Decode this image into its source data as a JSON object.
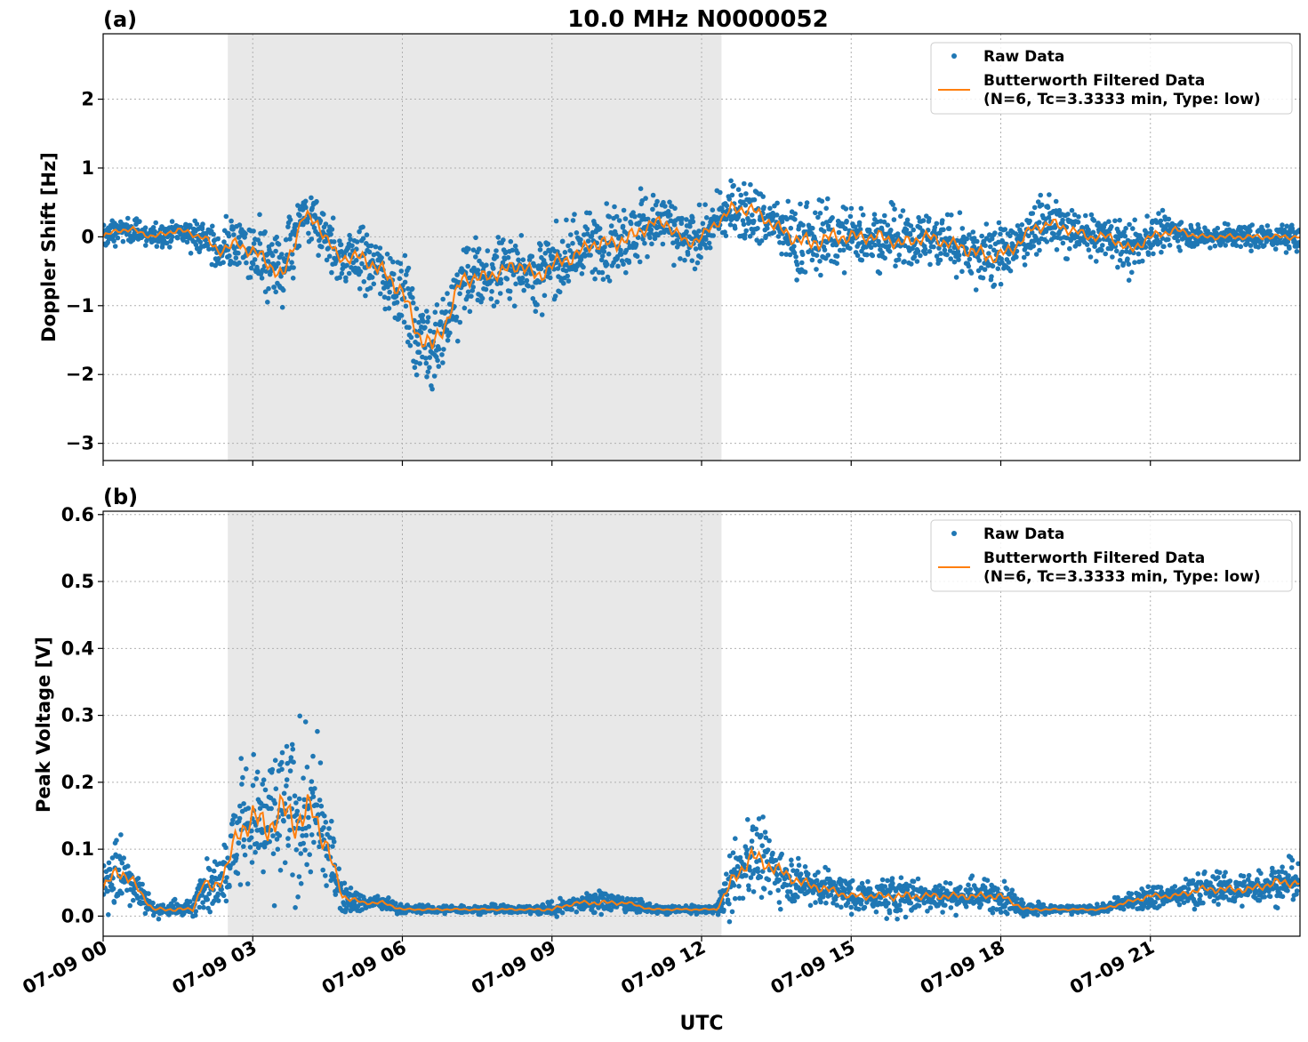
{
  "figure": {
    "title": "10.0 MHz N0000052",
    "xlabel": "UTC",
    "x_tick_labels": [
      "07-09 00",
      "07-09 03",
      "07-09 06",
      "07-09 09",
      "07-09 12",
      "07-09 15",
      "07-09 18",
      "07-09 21"
    ],
    "legend": {
      "raw": "Raw Data",
      "filtered_line1": "Butterworth Filtered Data",
      "filtered_line2": "(N=6, Tc=3.3333 min, Type: low)"
    },
    "colors": {
      "raw": "#1f77b4",
      "filtered": "#ff7f0e",
      "shade": "#e8e8e8",
      "grid": "#b0b0b0"
    }
  },
  "chart_data": [
    {
      "panel": "(a)",
      "type": "scatter",
      "ylabel": "Doppler Shift [Hz]",
      "xlim_hours": [
        0,
        24
      ],
      "ylim": [
        -3.25,
        2.95
      ],
      "y_ticks": [
        -3,
        -2,
        -1,
        0,
        1,
        2
      ],
      "y_tick_labels": [
        "−3",
        "−2",
        "−1",
        "0",
        "1",
        "2"
      ],
      "shaded_span_hours": [
        2.5,
        12.4
      ],
      "grid": true,
      "legend_position": "top-right",
      "series": [
        {
          "name": "Raw Data",
          "style": "points",
          "x_hours": [
            0,
            0.3,
            0.6,
            1,
            1.5,
            2,
            2.3,
            2.7,
            3.2,
            3.6,
            4,
            4.3,
            4.7,
            5.2,
            5.6,
            6,
            6.3,
            6.6,
            6.9,
            7.2,
            7.6,
            8,
            8.4,
            8.7,
            9,
            9.4,
            9.8,
            10.2,
            10.6,
            11,
            11.3,
            11.7,
            12,
            12.3,
            12.6,
            13,
            13.4,
            13.8,
            14.2,
            14.6,
            15,
            15.3,
            15.6,
            16,
            16.5,
            17,
            17.4,
            17.8,
            18.2,
            18.6,
            19,
            19.4,
            19.8,
            20.2,
            20.6,
            21,
            21.5,
            22,
            22.5,
            23,
            23.5,
            24
          ],
          "y_center": [
            0.0,
            0.1,
            0.1,
            0.0,
            0.1,
            0.0,
            -0.2,
            -0.1,
            -0.3,
            -0.6,
            0.3,
            0.2,
            -0.3,
            -0.3,
            -0.5,
            -0.8,
            -1.4,
            -1.6,
            -1.2,
            -0.6,
            -0.6,
            -0.5,
            -0.4,
            -0.6,
            -0.4,
            -0.3,
            -0.1,
            -0.1,
            0.0,
            0.2,
            0.2,
            -0.1,
            0.0,
            0.2,
            0.4,
            0.4,
            0.2,
            0.0,
            -0.1,
            0.0,
            0.0,
            0.0,
            0.0,
            -0.1,
            0.0,
            -0.1,
            -0.2,
            -0.3,
            -0.2,
            0.1,
            0.2,
            0.1,
            0.0,
            0.0,
            -0.2,
            0.0,
            0.1,
            0.0,
            0.0,
            0.0,
            0.0,
            0.0
          ],
          "y_spread": [
            0.15,
            0.15,
            0.15,
            0.15,
            0.15,
            0.2,
            0.3,
            0.35,
            0.4,
            0.45,
            0.4,
            0.35,
            0.35,
            0.4,
            0.45,
            0.5,
            0.55,
            0.55,
            0.5,
            0.45,
            0.4,
            0.4,
            0.4,
            0.45,
            0.45,
            0.4,
            0.4,
            0.45,
            0.45,
            0.35,
            0.35,
            0.35,
            0.3,
            0.3,
            0.35,
            0.35,
            0.35,
            0.4,
            0.45,
            0.45,
            0.4,
            0.35,
            0.35,
            0.35,
            0.35,
            0.35,
            0.4,
            0.4,
            0.35,
            0.3,
            0.3,
            0.3,
            0.25,
            0.25,
            0.3,
            0.25,
            0.2,
            0.15,
            0.15,
            0.15,
            0.15,
            0.15
          ]
        },
        {
          "name": "Butterworth Filtered Data (N=6, Tc=3.3333 min, Type: low)",
          "style": "line",
          "x_hours": [
            0,
            0.3,
            0.6,
            1,
            1.5,
            2,
            2.3,
            2.7,
            3.2,
            3.6,
            4,
            4.3,
            4.7,
            5.2,
            5.6,
            6,
            6.3,
            6.6,
            6.9,
            7.2,
            7.6,
            8,
            8.4,
            8.7,
            9,
            9.4,
            9.8,
            10.2,
            10.6,
            11,
            11.3,
            11.7,
            12,
            12.3,
            12.6,
            13,
            13.4,
            13.8,
            14.2,
            14.6,
            15,
            15.3,
            15.6,
            16,
            16.5,
            17,
            17.4,
            17.8,
            18.2,
            18.6,
            19,
            19.4,
            19.8,
            20.2,
            20.6,
            21,
            21.5,
            22,
            22.5,
            23,
            23.5,
            24
          ],
          "y": [
            0.0,
            0.1,
            0.1,
            0.0,
            0.1,
            0.0,
            -0.2,
            -0.1,
            -0.3,
            -0.6,
            0.3,
            0.2,
            -0.3,
            -0.3,
            -0.5,
            -0.8,
            -1.4,
            -1.6,
            -1.2,
            -0.6,
            -0.6,
            -0.5,
            -0.4,
            -0.6,
            -0.4,
            -0.3,
            -0.1,
            -0.1,
            0.0,
            0.2,
            0.2,
            -0.1,
            0.0,
            0.2,
            0.4,
            0.4,
            0.2,
            0.0,
            -0.1,
            0.0,
            0.0,
            0.0,
            0.0,
            -0.1,
            0.0,
            -0.1,
            -0.2,
            -0.3,
            -0.2,
            0.1,
            0.2,
            0.1,
            0.0,
            0.0,
            -0.2,
            0.0,
            0.1,
            0.0,
            0.0,
            0.0,
            0.0,
            0.0
          ]
        }
      ]
    },
    {
      "panel": "(b)",
      "type": "scatter",
      "ylabel": "Peak Voltage [V]",
      "xlim_hours": [
        0,
        24
      ],
      "ylim": [
        -0.03,
        0.605
      ],
      "y_ticks": [
        0,
        0.1,
        0.2,
        0.3,
        0.4,
        0.5,
        0.6
      ],
      "y_tick_labels": [
        "0.0",
        "0.1",
        "0.2",
        "0.3",
        "0.4",
        "0.5",
        "0.6"
      ],
      "shaded_span_hours": [
        2.5,
        12.4
      ],
      "grid": true,
      "legend_position": "top-right",
      "series": [
        {
          "name": "Raw Data",
          "style": "points",
          "x_hours": [
            0,
            0.3,
            0.6,
            1,
            1.5,
            1.8,
            2,
            2.2,
            2.4,
            2.7,
            3,
            3.3,
            3.6,
            3.9,
            4.2,
            4.5,
            4.8,
            5.2,
            5.6,
            6,
            6.5,
            7,
            7.5,
            8,
            8.5,
            9,
            9.5,
            10,
            10.5,
            11,
            11.5,
            12,
            12.3,
            12.6,
            13,
            13.5,
            14,
            14.5,
            15,
            15.5,
            16,
            16.5,
            17,
            17.5,
            18,
            18.5,
            19,
            19.5,
            20,
            20.5,
            21,
            21.5,
            22,
            22.5,
            23,
            23.5,
            24
          ],
          "y_center": [
            0.04,
            0.07,
            0.05,
            0.01,
            0.01,
            0.01,
            0.05,
            0.04,
            0.06,
            0.12,
            0.15,
            0.13,
            0.16,
            0.14,
            0.16,
            0.1,
            0.03,
            0.02,
            0.02,
            0.01,
            0.01,
            0.01,
            0.01,
            0.01,
            0.01,
            0.01,
            0.02,
            0.02,
            0.02,
            0.01,
            0.01,
            0.01,
            0.01,
            0.05,
            0.09,
            0.07,
            0.05,
            0.04,
            0.03,
            0.03,
            0.03,
            0.03,
            0.03,
            0.03,
            0.03,
            0.01,
            0.01,
            0.01,
            0.01,
            0.02,
            0.03,
            0.03,
            0.04,
            0.04,
            0.04,
            0.05,
            0.05
          ],
          "y_spread": [
            0.03,
            0.05,
            0.03,
            0.01,
            0.01,
            0.01,
            0.03,
            0.03,
            0.04,
            0.07,
            0.08,
            0.08,
            0.1,
            0.1,
            0.1,
            0.06,
            0.02,
            0.01,
            0.01,
            0.005,
            0.005,
            0.005,
            0.005,
            0.005,
            0.005,
            0.01,
            0.01,
            0.015,
            0.01,
            0.005,
            0.005,
            0.005,
            0.005,
            0.04,
            0.05,
            0.04,
            0.03,
            0.025,
            0.02,
            0.02,
            0.025,
            0.02,
            0.02,
            0.02,
            0.02,
            0.01,
            0.005,
            0.005,
            0.005,
            0.01,
            0.015,
            0.015,
            0.02,
            0.02,
            0.02,
            0.025,
            0.025
          ]
        },
        {
          "name": "Butterworth Filtered Data (N=6, Tc=3.3333 min, Type: low)",
          "style": "line",
          "x_hours": [
            0,
            0.3,
            0.6,
            1,
            1.5,
            1.8,
            2,
            2.2,
            2.4,
            2.7,
            3,
            3.3,
            3.6,
            3.9,
            4.2,
            4.5,
            4.8,
            5.2,
            5.6,
            6,
            6.5,
            7,
            7.5,
            8,
            8.5,
            9,
            9.5,
            10,
            10.5,
            11,
            11.5,
            12,
            12.3,
            12.6,
            13,
            13.5,
            14,
            14.5,
            15,
            15.5,
            16,
            16.5,
            17,
            17.5,
            18,
            18.5,
            19,
            19.5,
            20,
            20.5,
            21,
            21.5,
            22,
            22.5,
            23,
            23.5,
            24
          ],
          "y": [
            0.04,
            0.07,
            0.05,
            0.01,
            0.01,
            0.01,
            0.05,
            0.04,
            0.06,
            0.12,
            0.15,
            0.13,
            0.16,
            0.14,
            0.16,
            0.1,
            0.03,
            0.02,
            0.02,
            0.01,
            0.01,
            0.01,
            0.01,
            0.01,
            0.01,
            0.01,
            0.02,
            0.02,
            0.02,
            0.01,
            0.01,
            0.01,
            0.01,
            0.05,
            0.09,
            0.07,
            0.05,
            0.04,
            0.03,
            0.03,
            0.03,
            0.03,
            0.03,
            0.03,
            0.03,
            0.01,
            0.01,
            0.01,
            0.01,
            0.02,
            0.03,
            0.03,
            0.04,
            0.04,
            0.04,
            0.05,
            0.05
          ]
        }
      ]
    }
  ]
}
